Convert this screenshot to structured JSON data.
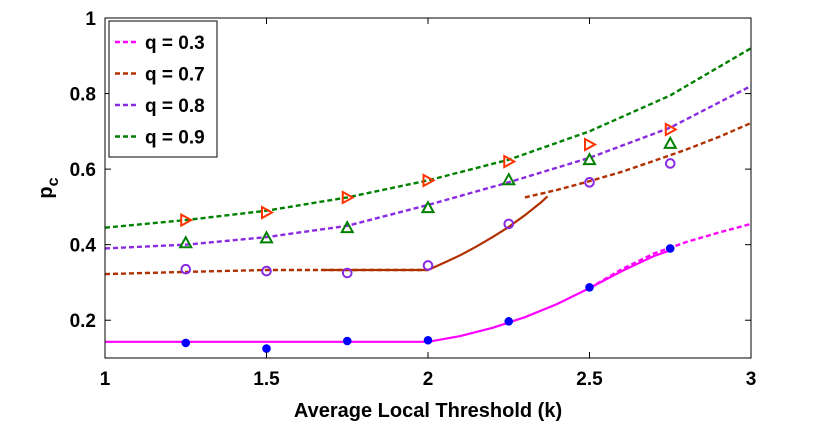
{
  "chart_data": {
    "type": "line",
    "title": "",
    "xlabel": "Average Local Threshold (k)",
    "ylabel": "p",
    "ylabel_subscript": "c",
    "xlim": [
      1,
      3
    ],
    "ylim": [
      0.1,
      1.0
    ],
    "xticks": [
      1,
      1.5,
      2,
      2.5,
      3
    ],
    "xtick_labels": [
      "1",
      "1.5",
      "2",
      "2.5",
      "3"
    ],
    "yticks": [
      0.2,
      0.4,
      0.6,
      0.8,
      1.0
    ],
    "ytick_labels": [
      "0.2",
      "0.4",
      "0.6",
      "0.8",
      "1"
    ],
    "grid": false,
    "legend_position": "top-left",
    "legend": [
      "q = 0.3",
      "q = 0.7",
      "q = 0.8",
      "q = 0.9"
    ],
    "series": [
      {
        "name": "q = 0.3",
        "color": "#ff00ff",
        "marker": "filled-circle",
        "marker_color": "#0000ff",
        "dashed_x": [
          2.5,
          2.6,
          2.7,
          2.8,
          2.9,
          3.0
        ],
        "dashed_y": [
          0.285,
          0.335,
          0.377,
          0.407,
          0.432,
          0.455
        ],
        "solid_x": [
          1.0,
          1.25,
          1.5,
          1.75,
          2.0,
          2.1,
          2.2,
          2.3,
          2.4,
          2.5,
          2.6,
          2.7,
          2.75
        ],
        "solid_y": [
          0.143,
          0.143,
          0.143,
          0.143,
          0.143,
          0.158,
          0.18,
          0.208,
          0.243,
          0.285,
          0.33,
          0.37,
          0.385
        ],
        "markers_x": [
          1.25,
          1.5,
          1.75,
          2.0,
          2.25,
          2.5,
          2.75
        ],
        "markers_y": [
          0.14,
          0.125,
          0.145,
          0.147,
          0.197,
          0.287,
          0.39
        ]
      },
      {
        "name": "q = 0.7",
        "color": "#b03000",
        "marker": "open-circle",
        "marker_color": "#8a2be2",
        "dashed_x": [
          1.0,
          1.25,
          1.5,
          1.75,
          2.0
        ],
        "dashed_y": [
          0.322,
          0.328,
          0.333,
          0.333,
          0.333
        ],
        "dashed2_x": [
          2.3,
          2.4,
          2.5,
          2.6,
          2.7,
          2.8,
          2.9,
          3.0
        ],
        "dashed2_y": [
          0.525,
          0.545,
          0.568,
          0.593,
          0.622,
          0.652,
          0.685,
          0.722
        ],
        "solid_x": [
          1.68,
          1.8,
          1.9,
          2.0,
          2.05,
          2.1,
          2.15,
          2.2,
          2.25,
          2.3,
          2.35,
          2.37
        ],
        "solid_y": [
          0.333,
          0.333,
          0.333,
          0.333,
          0.352,
          0.372,
          0.395,
          0.42,
          0.447,
          0.478,
          0.512,
          0.528
        ],
        "markers_x": [
          1.25,
          1.5,
          1.75,
          2.0,
          2.25,
          2.5,
          2.75
        ],
        "markers_y": [
          0.335,
          0.33,
          0.325,
          0.345,
          0.455,
          0.565,
          0.615
        ]
      },
      {
        "name": "q = 0.8",
        "color": "#8a2be2",
        "marker": "open-triangle-up",
        "marker_color": "#008000",
        "dashed_x": [
          1.0,
          1.25,
          1.5,
          1.75,
          2.0,
          2.25,
          2.5,
          2.75,
          3.0
        ],
        "dashed_y": [
          0.39,
          0.4,
          0.42,
          0.45,
          0.505,
          0.565,
          0.63,
          0.71,
          0.82
        ],
        "markers_x": [
          1.25,
          1.5,
          1.75,
          2.0,
          2.25,
          2.5,
          2.75
        ],
        "markers_y": [
          0.405,
          0.418,
          0.445,
          0.498,
          0.572,
          0.625,
          0.668
        ]
      },
      {
        "name": "q = 0.9",
        "color": "#008000",
        "marker": "open-triangle-right",
        "marker_color": "#ff3300",
        "dashed_x": [
          1.0,
          1.25,
          1.5,
          1.75,
          2.0,
          2.25,
          2.5,
          2.75,
          3.0
        ],
        "dashed_y": [
          0.445,
          0.465,
          0.49,
          0.525,
          0.57,
          0.625,
          0.7,
          0.795,
          0.92
        ],
        "markers_x": [
          1.25,
          1.5,
          1.75,
          2.0,
          2.25,
          2.5,
          2.75
        ],
        "markers_y": [
          0.465,
          0.485,
          0.525,
          0.57,
          0.62,
          0.665,
          0.705
        ]
      }
    ]
  }
}
